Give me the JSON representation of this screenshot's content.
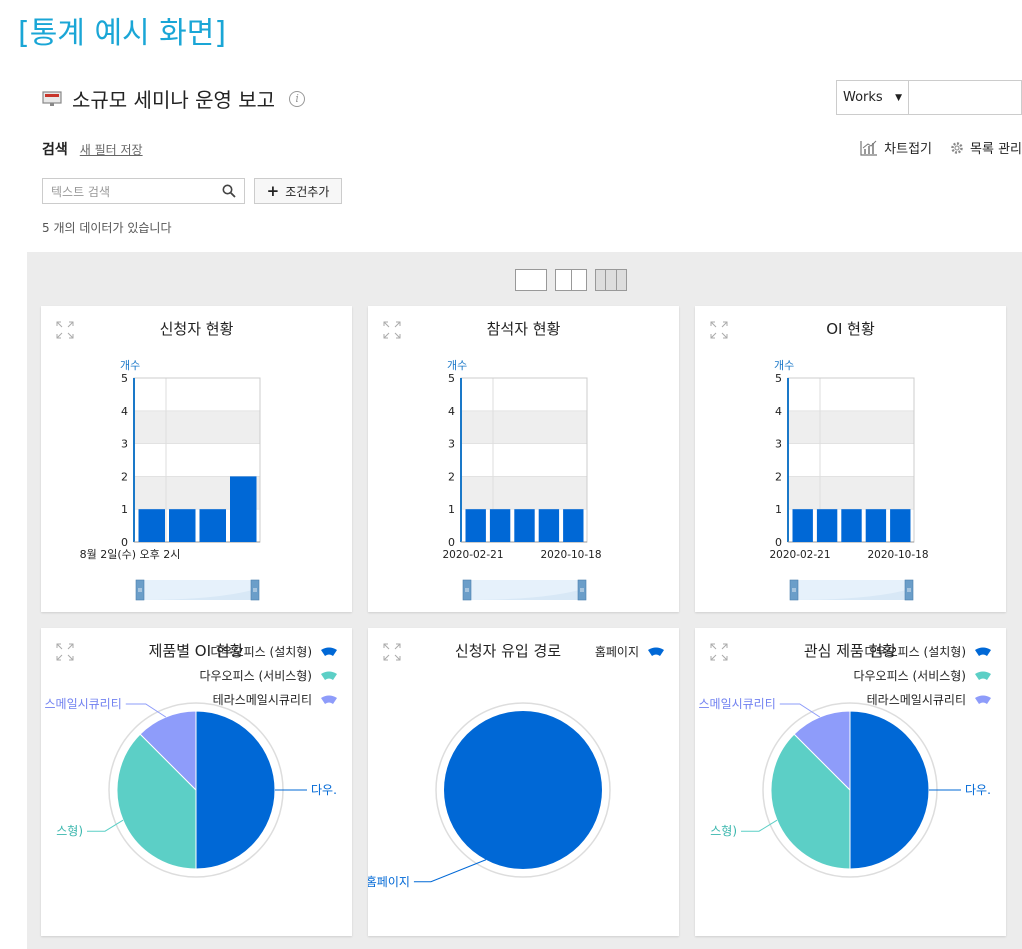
{
  "banner": "[통계 예시 화면]",
  "header": {
    "title": "소규모 세미나 운영 보고",
    "info": "i"
  },
  "works_select": {
    "value": "Works",
    "caret": "▼"
  },
  "search": {
    "label": "검색",
    "save_filter": "새 필터 저장",
    "placeholder": "텍스트 검색",
    "add_condition": "조건추가",
    "add_plus": "+"
  },
  "toolbar": {
    "chart_fold": "차트접기",
    "list_manage": "목록 관리"
  },
  "data_count": "5 개의 데이터가 있습니다",
  "colors": {
    "bar": "#0068d6",
    "pie_blue": "#0068d6",
    "pie_teal": "#5ccfc6",
    "pie_purple": "#8e9cfa",
    "accent": "#1aa6d6"
  },
  "cards": [
    {
      "title": "신청자 현황",
      "ylabel": "개수",
      "xticks": [
        "8월 2일(수) 오후 2시"
      ],
      "chart_data": {
        "type": "bar",
        "values": [
          1,
          1,
          1,
          2
        ],
        "ylim": [
          0,
          5
        ],
        "yticks": [
          0,
          1,
          2,
          3,
          4,
          5
        ]
      }
    },
    {
      "title": "참석자 현황",
      "ylabel": "개수",
      "xticks": [
        "2020-02-21",
        "2020-10-18"
      ],
      "chart_data": {
        "type": "bar",
        "values": [
          1,
          1,
          1,
          1,
          1
        ],
        "ylim": [
          0,
          5
        ],
        "yticks": [
          0,
          1,
          2,
          3,
          4,
          5
        ]
      }
    },
    {
      "title": "OI 현황",
      "ylabel": "개수",
      "xticks": [
        "2020-02-21",
        "2020-10-18"
      ],
      "chart_data": {
        "type": "bar",
        "values": [
          1,
          1,
          1,
          1,
          1
        ],
        "ylim": [
          0,
          5
        ],
        "yticks": [
          0,
          1,
          2,
          3,
          4,
          5
        ]
      }
    }
  ],
  "pies": [
    {
      "title": "제품별 OI 현황",
      "legend": [
        "다우오피스 (설치형)",
        "다우오피스 (서비스형)",
        "테라스메일시큐리티"
      ],
      "labels": [
        "다우.",
        "스형)",
        "스메일시큐리티"
      ],
      "chart_data": {
        "type": "pie",
        "categories": [
          "다우오피스 (설치형)",
          "다우오피스 (서비스형)",
          "테라스메일시큐리티"
        ],
        "values": [
          50,
          37.5,
          12.5
        ]
      }
    },
    {
      "title": "신청자 유입 경로",
      "legend": [
        "홈페이지"
      ],
      "labels": [
        "홈페이지"
      ],
      "chart_data": {
        "type": "pie",
        "categories": [
          "홈페이지"
        ],
        "values": [
          100
        ]
      }
    },
    {
      "title": "관심 제품 현황",
      "legend": [
        "다우오피스 (설치형)",
        "다우오피스 (서비스형)",
        "테라스메일시큐리티"
      ],
      "labels": [
        "다우.",
        "스형)",
        "스메일시큐리티"
      ],
      "chart_data": {
        "type": "pie",
        "categories": [
          "다우오피스 (설치형)",
          "다우오피스 (서비스형)",
          "테라스메일시큐리티"
        ],
        "values": [
          50,
          37.5,
          12.5
        ]
      }
    }
  ]
}
